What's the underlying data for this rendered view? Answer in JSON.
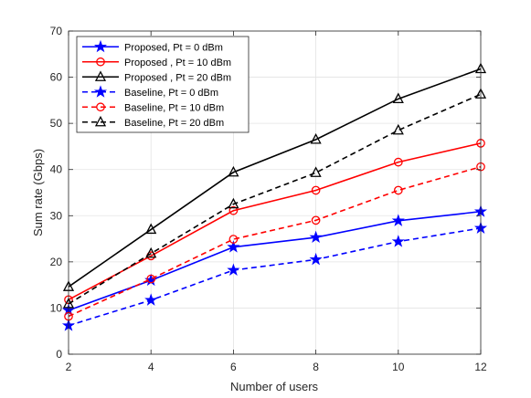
{
  "chart_data": {
    "type": "line",
    "title": "",
    "xlabel": "Number of users",
    "ylabel": "Sum rate (Gbps)",
    "xlim": [
      2,
      12
    ],
    "ylim": [
      0,
      70
    ],
    "xticks": [
      2,
      4,
      6,
      8,
      10,
      12
    ],
    "yticks": [
      0,
      10,
      20,
      30,
      40,
      50,
      60,
      70
    ],
    "grid": true,
    "legend_position": "top-left",
    "x": [
      2,
      4,
      6,
      8,
      10,
      12
    ],
    "series": [
      {
        "name": "Proposed, Pt = 0 dBm",
        "values": [
          9.5,
          16.0,
          23.2,
          25.3,
          28.9,
          30.9
        ],
        "color": "#0000ff",
        "dash": "solid",
        "marker": "star"
      },
      {
        "name": "Proposed , Pt = 10 dBm",
        "values": [
          11.8,
          21.3,
          31.1,
          35.5,
          41.6,
          45.7
        ],
        "color": "#ff0000",
        "dash": "solid",
        "marker": "circle"
      },
      {
        "name": "Proposed , Pt = 20 dBm",
        "values": [
          14.6,
          27.0,
          39.4,
          46.5,
          55.3,
          61.8
        ],
        "color": "#000000",
        "dash": "solid",
        "marker": "triangle"
      },
      {
        "name": "Baseline, Pt = 0 dBm",
        "values": [
          6.2,
          11.7,
          18.2,
          20.5,
          24.4,
          27.3
        ],
        "color": "#0000ff",
        "dash": "dashed",
        "marker": "star"
      },
      {
        "name": "Baseline, Pt = 10 dBm",
        "values": [
          8.2,
          16.3,
          24.9,
          29.0,
          35.5,
          40.6
        ],
        "color": "#ff0000",
        "dash": "dashed",
        "marker": "circle"
      },
      {
        "name": "Baseline, Pt = 20 dBm",
        "values": [
          10.9,
          21.8,
          32.5,
          39.3,
          48.5,
          56.3
        ],
        "color": "#000000",
        "dash": "dashed",
        "marker": "triangle"
      }
    ]
  }
}
